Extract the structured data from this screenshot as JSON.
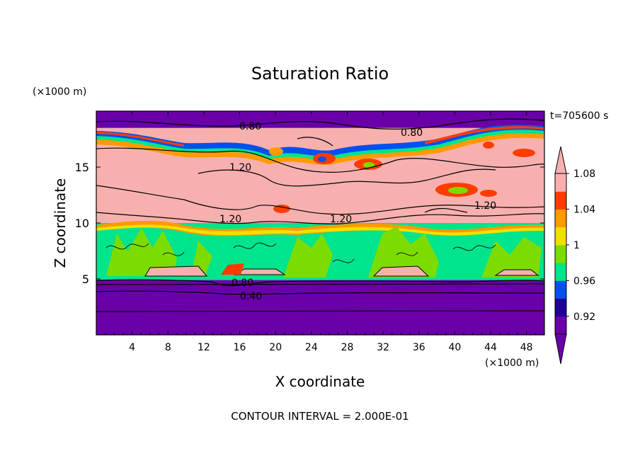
{
  "chart_data": {
    "type": "heatmap",
    "title": "Saturation Ratio",
    "xlabel": "X coordinate",
    "ylabel": "Z coordinate",
    "x_unit": "(×1000 m)",
    "y_unit": "(×1000 m)",
    "time_label": "t=705600 s",
    "footer": "CONTOUR INTERVAL = 2.000E-01",
    "xlim": [
      0,
      50
    ],
    "ylim": [
      0,
      20
    ],
    "x_ticks": [
      4,
      8,
      12,
      16,
      20,
      24,
      28,
      32,
      36,
      40,
      44,
      48
    ],
    "y_ticks": [
      5,
      10,
      15
    ],
    "colorbar": {
      "tick_labels": [
        "0.92",
        "0.96",
        "1",
        "1.04",
        "1.08"
      ],
      "colors": [
        "#6a00a8",
        "#1e0096",
        "#0050f0",
        "#00e48c",
        "#7cdc00",
        "#f0e000",
        "#ff9a00",
        "#ff3c00",
        "#f7b0ae"
      ]
    },
    "contour_labels": [
      "0.80",
      "0.80",
      "1.20",
      "1.20",
      "1.20",
      "1.20",
      "0.80",
      "0.40"
    ],
    "layers": [
      {
        "name": "lower",
        "z_range": [
          0,
          4.9
        ],
        "color": "#6a00a8"
      },
      {
        "name": "mid",
        "z_range": [
          4.9,
          10
        ],
        "color": "#00e48c"
      },
      {
        "name": "upper",
        "z_range": [
          10,
          18.5
        ],
        "color": "#f7b0ae"
      },
      {
        "name": "top",
        "z_range": [
          18.5,
          20
        ],
        "color": "#6a00a8"
      }
    ]
  }
}
